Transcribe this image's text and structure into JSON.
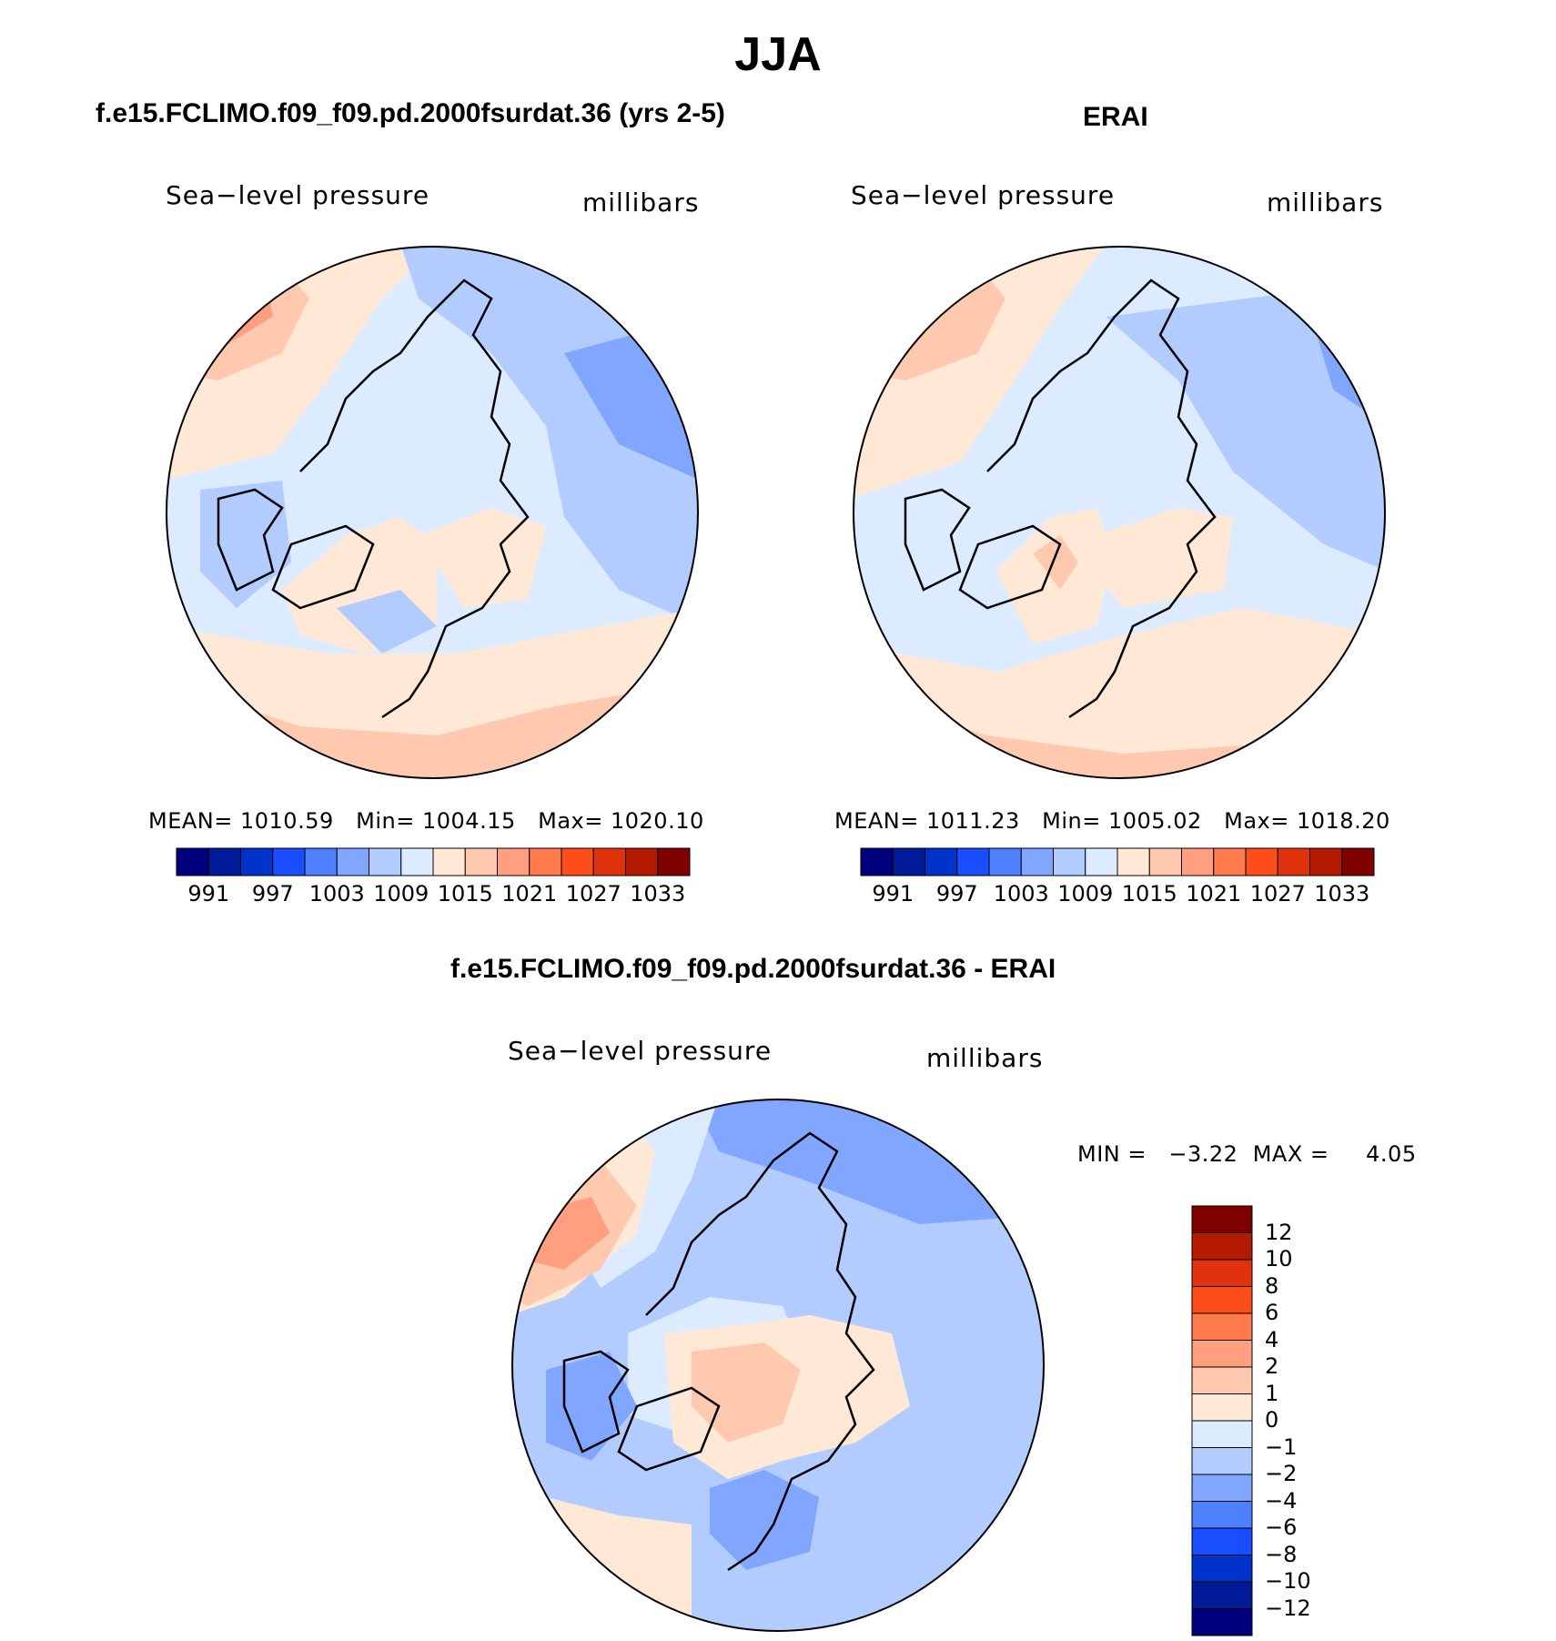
{
  "title": "JJA",
  "panels": {
    "model": {
      "title": "f.e15.FCLIMO.f09_f09.pd.2000fsurdat.36 (yrs 2-5)",
      "variable": "Sea−level pressure",
      "units": "millibars",
      "mean_label": "MEAN=",
      "mean_value": "1010.59",
      "min_label": "Min=",
      "min_value": "1004.15",
      "max_label": "Max=",
      "max_value": "1020.10"
    },
    "obs": {
      "title": "ERAI",
      "variable": "Sea−level pressure",
      "units": "millibars",
      "mean_label": "MEAN=",
      "mean_value": "1011.23",
      "min_label": "Min=",
      "min_value": "1005.02",
      "max_label": "Max=",
      "max_value": "1018.20"
    },
    "diff": {
      "title": "f.e15.FCLIMO.f09_f09.pd.2000fsurdat.36 - ERAI",
      "variable": "Sea−level pressure",
      "units": "millibars",
      "min_label": "MIN =",
      "min_value": "−3.22",
      "max_label": "MAX =",
      "max_value": "4.05"
    }
  },
  "colorbar_abs": {
    "colors": [
      "#00007f",
      "#001a99",
      "#0033cc",
      "#1a4dff",
      "#4d7fff",
      "#80a6ff",
      "#b3ccff",
      "#dcebff",
      "#ffe9d6",
      "#ffc9b0",
      "#ff9f7f",
      "#ff7a4d",
      "#ff4d1a",
      "#e0330d",
      "#b31a00",
      "#800000"
    ],
    "ticks": [
      "991",
      "997",
      "1003",
      "1009",
      "1015",
      "1021",
      "1027",
      "1033"
    ]
  },
  "colorbar_diff": {
    "colors": [
      "#800000",
      "#b31a00",
      "#e0330d",
      "#ff4d1a",
      "#ff7a4d",
      "#ff9f7f",
      "#ffc9b0",
      "#ffe9d6",
      "#dcebff",
      "#b3ccff",
      "#80a6ff",
      "#4d7fff",
      "#1a4dff",
      "#0033cc",
      "#001a99",
      "#00007f"
    ],
    "ticks": [
      "12",
      "10",
      "8",
      "6",
      "4",
      "2",
      "1",
      "0",
      "−1",
      "−2",
      "−4",
      "−6",
      "−8",
      "−10",
      "−12"
    ]
  },
  "map_colors": {
    "light_blue": "#dcebff",
    "mid_blue": "#b3ccff",
    "blue": "#80a6ff",
    "peach": "#ffe9d6",
    "salmon": "#ffc9b0",
    "orange": "#ff9f7f"
  }
}
